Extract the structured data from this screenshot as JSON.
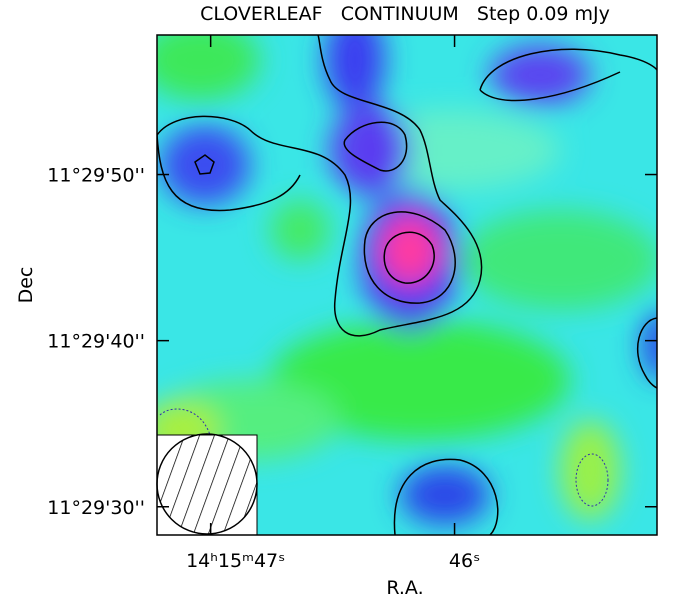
{
  "chart_data": {
    "type": "image",
    "title": "CLOVERLEAF   CONTINUUM   Step 0.09 mJy",
    "xlabel": "R.A.",
    "ylabel": "Dec",
    "xlim": [
      47.22,
      45.17
    ],
    "ylim": [
      28.3,
      58.4
    ],
    "xticks": [
      {
        "value": 47,
        "label": "14ʰ15ᵐ47ˢ"
      },
      {
        "value": 46,
        "label": "46ˢ"
      }
    ],
    "yticks": [
      {
        "value": 50,
        "label": "11°29'50''"
      },
      {
        "value": 40,
        "label": "11°29'40''"
      },
      {
        "value": 30,
        "label": "11°29'30''"
      }
    ]
  }
}
